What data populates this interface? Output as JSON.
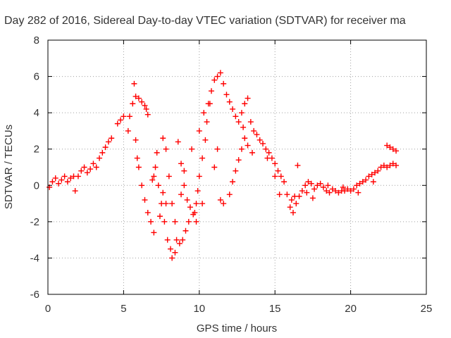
{
  "chart_data": {
    "type": "scatter",
    "title": "Day 282 of 2016, Sidereal Day-to-day VTEC variation (SDTVAR) for receiver ma",
    "xlabel": "GPS time / hours",
    "ylabel": "SDTVAR / TECUs",
    "xlim": [
      0,
      25
    ],
    "ylim": [
      -6,
      8
    ],
    "x_ticks": [
      "0",
      "5",
      "10",
      "15",
      "20",
      "25"
    ],
    "y_ticks": [
      "-6",
      "-4",
      "-2",
      "0",
      "2",
      "4",
      "6",
      "8"
    ],
    "grid": true,
    "marker": "plus",
    "color": "#ff0000",
    "series": [
      {
        "points": [
          [
            0.1,
            -0.1
          ],
          [
            0.3,
            0.2
          ],
          [
            0.5,
            0.4
          ],
          [
            0.7,
            0.1
          ],
          [
            0.9,
            0.3
          ],
          [
            1.1,
            0.5
          ],
          [
            1.3,
            0.2
          ],
          [
            1.5,
            0.4
          ],
          [
            1.7,
            0.5
          ],
          [
            1.8,
            -0.3
          ],
          [
            2.0,
            0.5
          ],
          [
            2.2,
            0.8
          ],
          [
            2.4,
            1.0
          ],
          [
            2.6,
            0.7
          ],
          [
            2.8,
            0.9
          ],
          [
            3.0,
            1.2
          ],
          [
            3.2,
            1.0
          ],
          [
            3.4,
            1.5
          ],
          [
            3.6,
            1.8
          ],
          [
            3.8,
            2.1
          ],
          [
            4.0,
            2.4
          ],
          [
            4.2,
            2.6
          ],
          [
            5.3,
            3.0
          ],
          [
            5.4,
            3.8
          ],
          [
            5.6,
            4.5
          ],
          [
            5.7,
            5.6
          ],
          [
            5.8,
            4.9
          ],
          [
            6.0,
            4.8
          ],
          [
            6.2,
            4.6
          ],
          [
            6.4,
            4.4
          ],
          [
            6.5,
            4.2
          ],
          [
            6.6,
            3.9
          ],
          [
            5.8,
            2.5
          ],
          [
            5.9,
            1.5
          ],
          [
            6.0,
            1.0
          ],
          [
            6.2,
            0.0
          ],
          [
            6.4,
            -0.8
          ],
          [
            6.6,
            -1.5
          ],
          [
            6.8,
            -2.0
          ],
          [
            7.0,
            -2.6
          ],
          [
            7.0,
            0.5
          ],
          [
            7.2,
            1.8
          ],
          [
            7.1,
            1.0
          ],
          [
            7.3,
            0.0
          ],
          [
            7.5,
            -1.0
          ],
          [
            7.7,
            -2.0
          ],
          [
            7.9,
            -3.0
          ],
          [
            8.1,
            -3.5
          ],
          [
            8.2,
            -4.0
          ],
          [
            8.4,
            -3.7
          ],
          [
            7.6,
            2.6
          ],
          [
            7.8,
            2.0
          ],
          [
            8.0,
            0.5
          ],
          [
            8.2,
            -1.0
          ],
          [
            8.4,
            -2.0
          ],
          [
            8.5,
            -3.0
          ],
          [
            8.7,
            -3.2
          ],
          [
            8.9,
            -3.0
          ],
          [
            9.1,
            -2.5
          ],
          [
            9.3,
            -2.0
          ],
          [
            8.6,
            2.4
          ],
          [
            8.8,
            1.2
          ],
          [
            9.0,
            0.0
          ],
          [
            9.2,
            -0.8
          ],
          [
            9.4,
            -1.2
          ],
          [
            9.6,
            -1.6
          ],
          [
            9.8,
            -1.0
          ],
          [
            9.9,
            -0.3
          ],
          [
            10.0,
            0.5
          ],
          [
            10.2,
            1.5
          ],
          [
            10.4,
            2.5
          ],
          [
            10.5,
            3.5
          ],
          [
            10.6,
            4.5
          ],
          [
            10.8,
            5.2
          ],
          [
            11.0,
            5.8
          ],
          [
            11.2,
            6.0
          ],
          [
            11.4,
            6.2
          ],
          [
            11.6,
            5.6
          ],
          [
            11.8,
            5.0
          ],
          [
            12.0,
            4.6
          ],
          [
            12.2,
            4.2
          ],
          [
            12.4,
            3.8
          ],
          [
            12.6,
            3.5
          ],
          [
            12.8,
            4.0
          ],
          [
            13.0,
            4.5
          ],
          [
            13.2,
            4.8
          ],
          [
            13.4,
            3.5
          ],
          [
            13.6,
            3.0
          ],
          [
            13.8,
            2.8
          ],
          [
            14.0,
            2.5
          ],
          [
            14.2,
            2.3
          ],
          [
            14.4,
            2.0
          ],
          [
            14.6,
            1.8
          ],
          [
            14.8,
            1.5
          ],
          [
            15.0,
            1.2
          ],
          [
            15.2,
            0.8
          ],
          [
            15.4,
            0.5
          ],
          [
            15.6,
            0.2
          ],
          [
            15.8,
            -0.5
          ],
          [
            16.0,
            -1.2
          ],
          [
            16.2,
            -1.5
          ],
          [
            16.4,
            -1.0
          ],
          [
            16.6,
            -0.6
          ],
          [
            16.8,
            -0.3
          ],
          [
            17.0,
            0.0
          ],
          [
            17.2,
            0.2
          ],
          [
            17.4,
            0.1
          ],
          [
            17.6,
            -0.2
          ],
          [
            17.8,
            0.0
          ],
          [
            18.0,
            0.1
          ],
          [
            18.2,
            -0.1
          ],
          [
            18.4,
            -0.3
          ],
          [
            18.6,
            -0.4
          ],
          [
            18.8,
            -0.2
          ],
          [
            19.0,
            -0.3
          ],
          [
            19.2,
            -0.4
          ],
          [
            19.4,
            -0.3
          ],
          [
            19.6,
            -0.3
          ],
          [
            19.8,
            -0.2
          ],
          [
            20.0,
            -0.3
          ],
          [
            20.2,
            -0.2
          ],
          [
            20.4,
            0.0
          ],
          [
            20.6,
            0.1
          ],
          [
            20.8,
            0.2
          ],
          [
            21.0,
            0.3
          ],
          [
            21.2,
            0.5
          ],
          [
            21.4,
            0.6
          ],
          [
            21.6,
            0.7
          ],
          [
            21.8,
            0.8
          ],
          [
            22.0,
            1.0
          ],
          [
            22.2,
            1.1
          ],
          [
            22.4,
            1.0
          ],
          [
            22.6,
            1.1
          ],
          [
            22.8,
            1.2
          ],
          [
            23.0,
            1.1
          ],
          [
            22.4,
            2.2
          ],
          [
            22.6,
            2.1
          ],
          [
            22.8,
            2.0
          ],
          [
            23.0,
            1.9
          ],
          [
            16.5,
            1.1
          ],
          [
            12.0,
            -0.5
          ],
          [
            12.2,
            0.2
          ],
          [
            12.4,
            0.8
          ],
          [
            12.6,
            1.4
          ],
          [
            12.8,
            2.0
          ],
          [
            11.0,
            1.0
          ],
          [
            11.2,
            2.0
          ],
          [
            11.4,
            -0.8
          ],
          [
            11.6,
            -1.0
          ],
          [
            10.2,
            -1.0
          ],
          [
            9.7,
            -1.5
          ],
          [
            9.8,
            -2.0
          ],
          [
            7.4,
            -1.7
          ],
          [
            7.8,
            -1.0
          ],
          [
            8.8,
            -0.5
          ],
          [
            9.0,
            0.8
          ],
          [
            9.5,
            2.0
          ],
          [
            10.0,
            3.0
          ],
          [
            10.3,
            4.0
          ],
          [
            10.7,
            4.5
          ],
          [
            12.9,
            3.2
          ],
          [
            13.0,
            2.6
          ],
          [
            13.2,
            2.2
          ],
          [
            13.5,
            1.8
          ],
          [
            14.5,
            1.5
          ],
          [
            15.0,
            0.5
          ],
          [
            15.3,
            -0.5
          ],
          [
            16.1,
            -0.8
          ],
          [
            16.3,
            -0.6
          ],
          [
            17.1,
            -0.4
          ],
          [
            17.5,
            -0.7
          ],
          [
            18.5,
            0.0
          ],
          [
            19.5,
            -0.1
          ],
          [
            20.5,
            -0.4
          ],
          [
            21.5,
            0.2
          ],
          [
            4.6,
            3.4
          ],
          [
            4.8,
            3.6
          ],
          [
            5.0,
            3.8
          ],
          [
            6.9,
            0.3
          ],
          [
            7.6,
            -0.4
          ]
        ]
      }
    ]
  }
}
